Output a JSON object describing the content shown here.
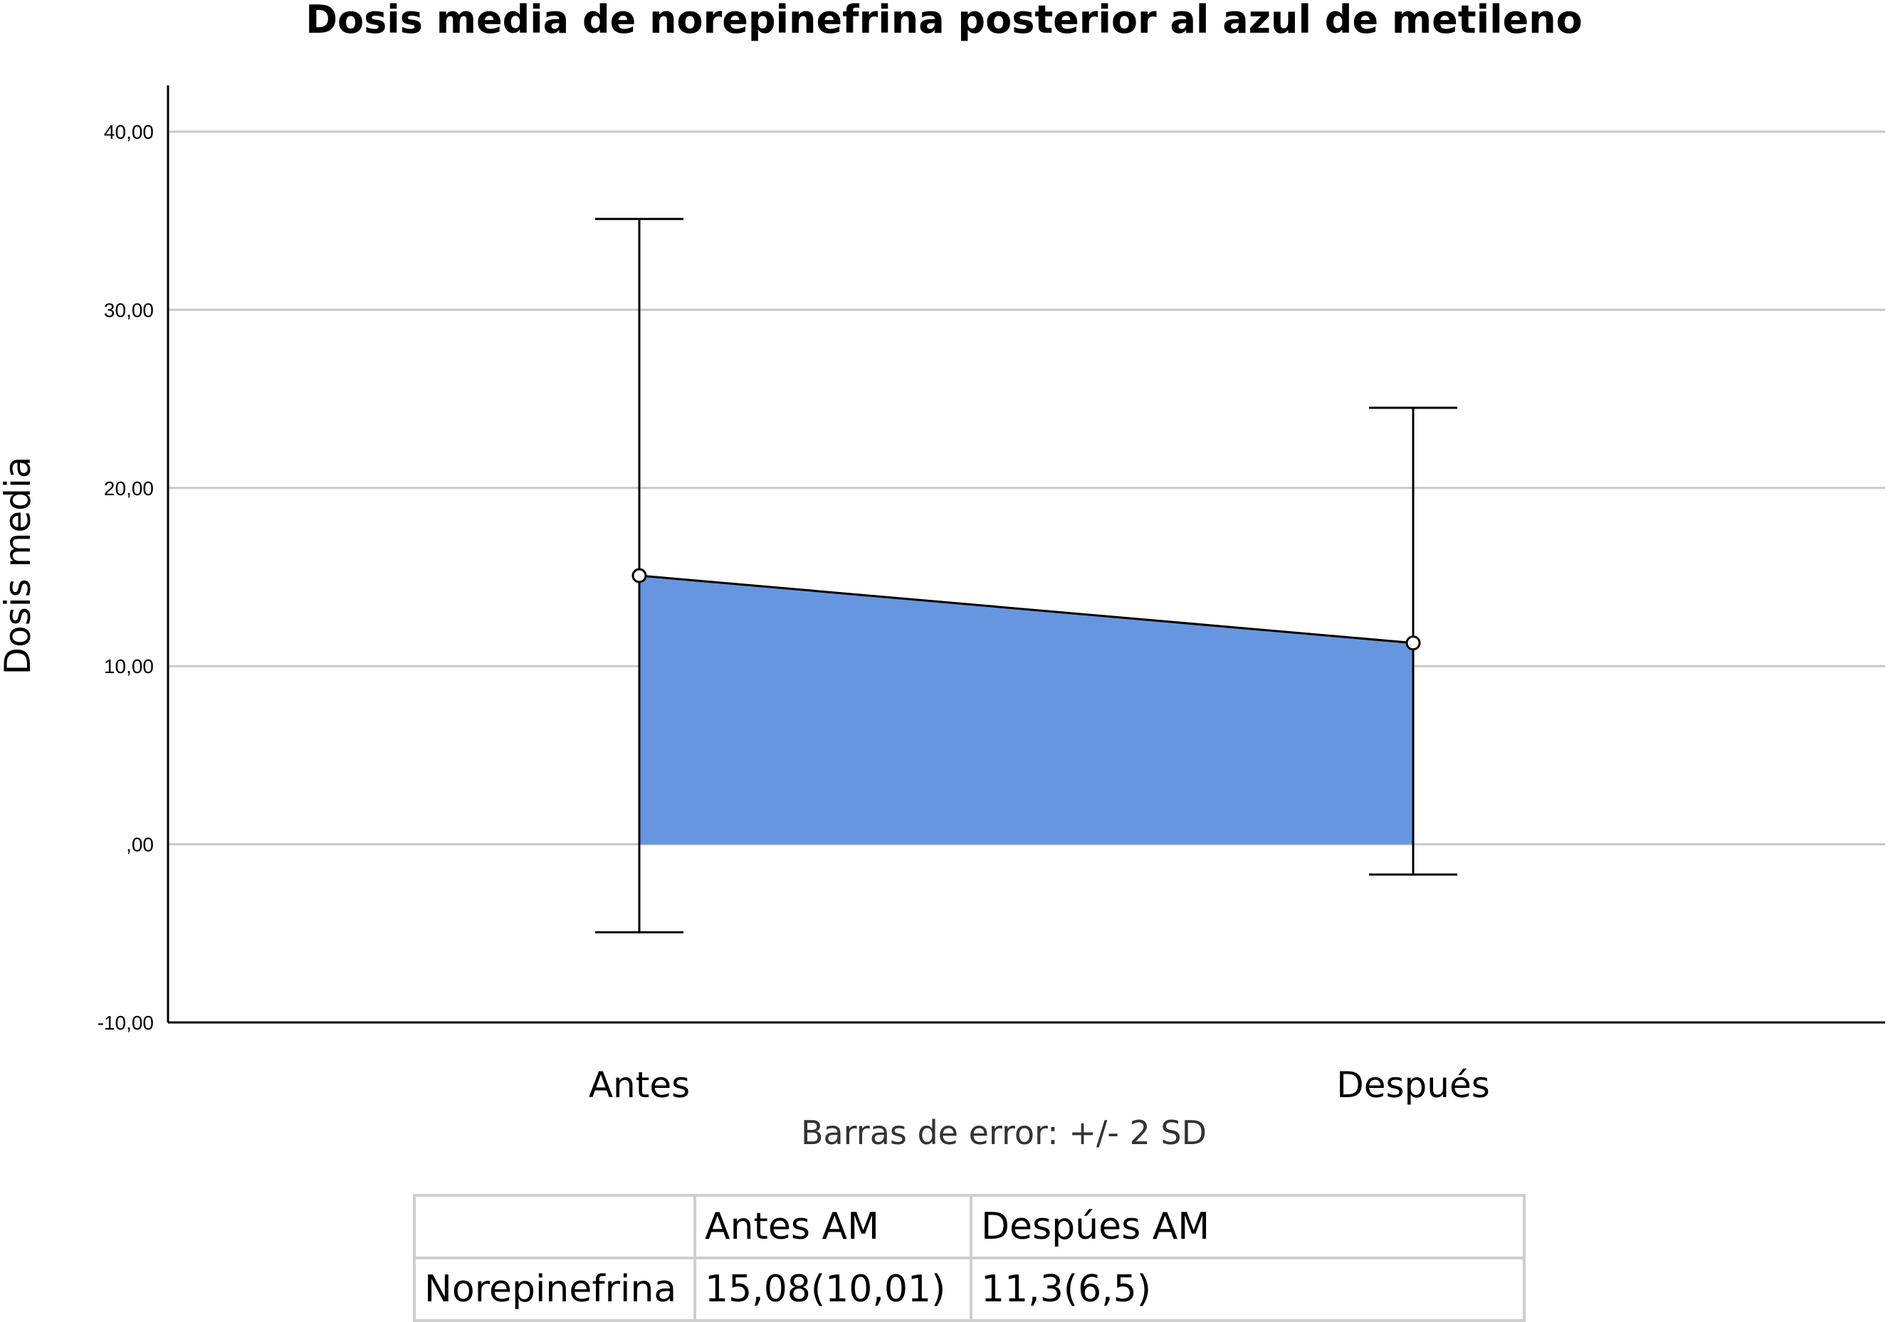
{
  "chart_data": {
    "type": "area",
    "title": "Dosis media de norepinefrina posterior al azul de metileno",
    "xlabel": "",
    "ylabel": "Dosis media",
    "categories": [
      "Antes",
      "Después"
    ],
    "values": [
      15.08,
      11.3
    ],
    "error_bars": {
      "label": "Barras de error: +/- 2 SD",
      "lower": [
        -4.94,
        -1.7
      ],
      "upper": [
        35.1,
        24.5
      ]
    },
    "ylim": [
      -10,
      40
    ],
    "yticks": [
      -10,
      0,
      10,
      20,
      30,
      40
    ],
    "ytick_labels": [
      "-10,00",
      ",00",
      "10,00",
      "20,00",
      "30,00",
      "40,00"
    ],
    "grid": true,
    "colors": {
      "fill": "#6796e0",
      "line": "#000000",
      "grid": "#c8c8c8"
    }
  },
  "table": {
    "header": [
      "",
      "Antes AM",
      "Despúes AM"
    ],
    "rows": [
      [
        "Norepinefrina",
        "15,08(10,01)",
        "11,3(6,5)"
      ]
    ]
  }
}
